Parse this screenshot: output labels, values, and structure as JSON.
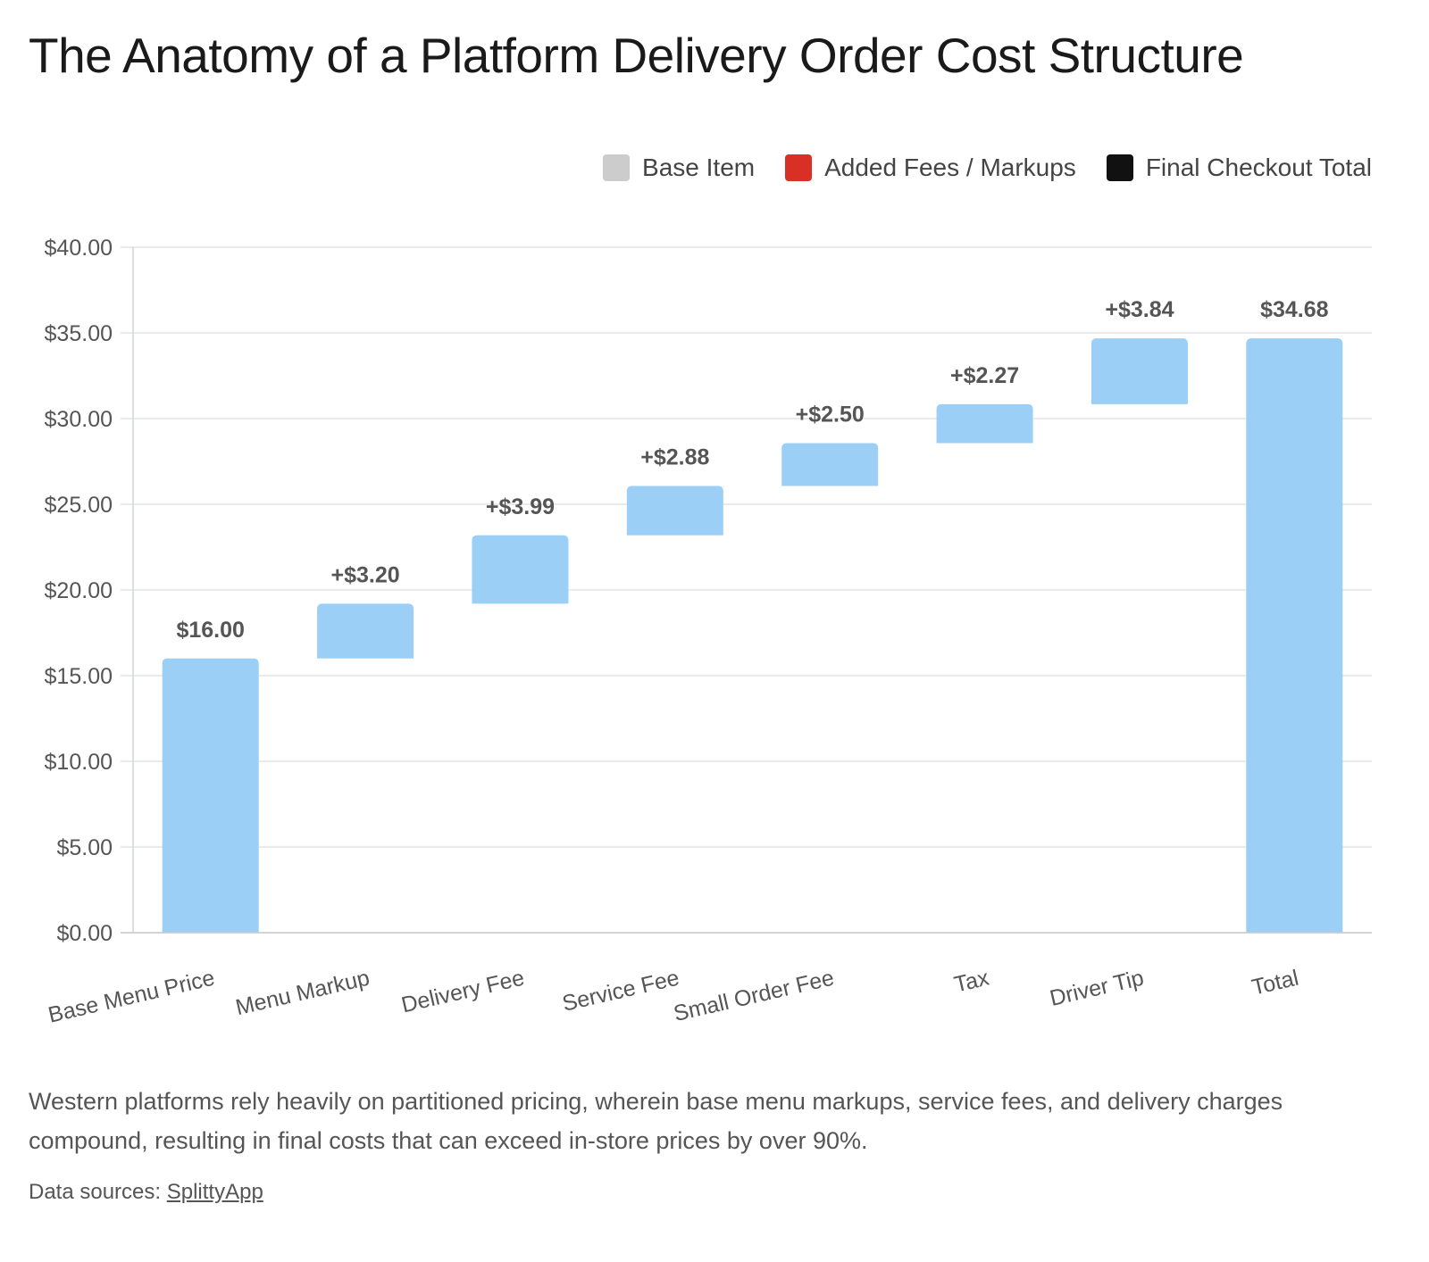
{
  "title": "The Anatomy of a Platform Delivery Order Cost Structure",
  "legend": [
    {
      "label": "Base Item",
      "color": "#cccccc"
    },
    {
      "label": "Added Fees / Markups",
      "color": "#d93025"
    },
    {
      "label": "Final Checkout Total",
      "color": "#111111"
    }
  ],
  "chart_data": {
    "type": "bar",
    "subtype": "waterfall",
    "categories": [
      "Base Menu Price",
      "Menu Markup",
      "Delivery Fee",
      "Service Fee",
      "Small Order Fee",
      "Tax",
      "Driver Tip",
      "Total"
    ],
    "values": [
      16.0,
      3.2,
      3.99,
      2.88,
      2.5,
      2.27,
      3.84,
      34.68
    ],
    "bar_kind": [
      "base",
      "increment",
      "increment",
      "increment",
      "increment",
      "increment",
      "increment",
      "total"
    ],
    "data_labels": [
      "$16.00",
      "+$3.20",
      "+$3.99",
      "+$2.88",
      "+$2.50",
      "+$2.27",
      "+$3.84",
      "$34.68"
    ],
    "y_ticks": [
      "$0.00",
      "$5.00",
      "$10.00",
      "$15.00",
      "$20.00",
      "$25.00",
      "$30.00",
      "$35.00",
      "$40.00"
    ],
    "ylim": [
      0,
      40
    ],
    "grid": true,
    "legend_position": "top-right",
    "bar_color": "#9bcff5",
    "title": "The Anatomy of a Platform Delivery Order Cost Structure"
  },
  "caption": "Western platforms rely heavily on partitioned pricing, wherein base menu markups, service fees, and delivery charges compound, resulting in final costs that can exceed in-store prices by over 90%.",
  "sources": {
    "prefix": "Data sources: ",
    "link": "SplittyApp"
  }
}
